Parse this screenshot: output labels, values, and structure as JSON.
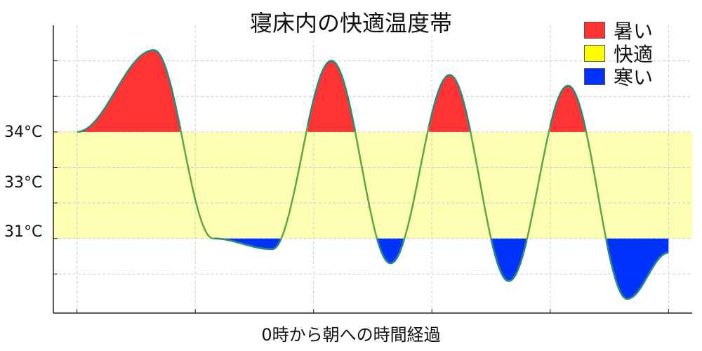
{
  "chart_data": {
    "type": "area",
    "title": "寝床内の快適温度帯",
    "xlabel": "0時から朝への時間経過",
    "ylabel": "",
    "y_tick_labels": [
      {
        "value": 34,
        "label": "34°C"
      },
      {
        "value": 33,
        "label": "33°C"
      },
      {
        "value": 31,
        "label": "31°C"
      }
    ],
    "comfort_band": {
      "low": 31,
      "high": 34
    },
    "legend": [
      {
        "label": "暑い",
        "color": "#ff3333"
      },
      {
        "label": "快適",
        "color": "#ffff00"
      },
      {
        "label": "寒い",
        "color": "#0033ff"
      }
    ],
    "series": [
      {
        "x": [
          0,
          0.65,
          1.15,
          1.65,
          2.15,
          2.65,
          3.15,
          3.65,
          4.15,
          4.65,
          5.0
        ],
        "values": [
          34,
          36.3,
          31.0,
          30.7,
          36.0,
          30.3,
          35.6,
          29.8,
          35.3,
          29.3,
          30.6
        ]
      }
    ],
    "xlim": [
      -0.2,
      5.2
    ],
    "ylim": [
      28.9,
      37.0
    ],
    "grid": true,
    "legend_position": "top-right"
  },
  "colors": {
    "hot": "#ff3333",
    "comfort_band": "#ffffb3",
    "cold": "#0033ff",
    "line_green": "#5aa84a",
    "line_teal": "#2a8a7a"
  }
}
